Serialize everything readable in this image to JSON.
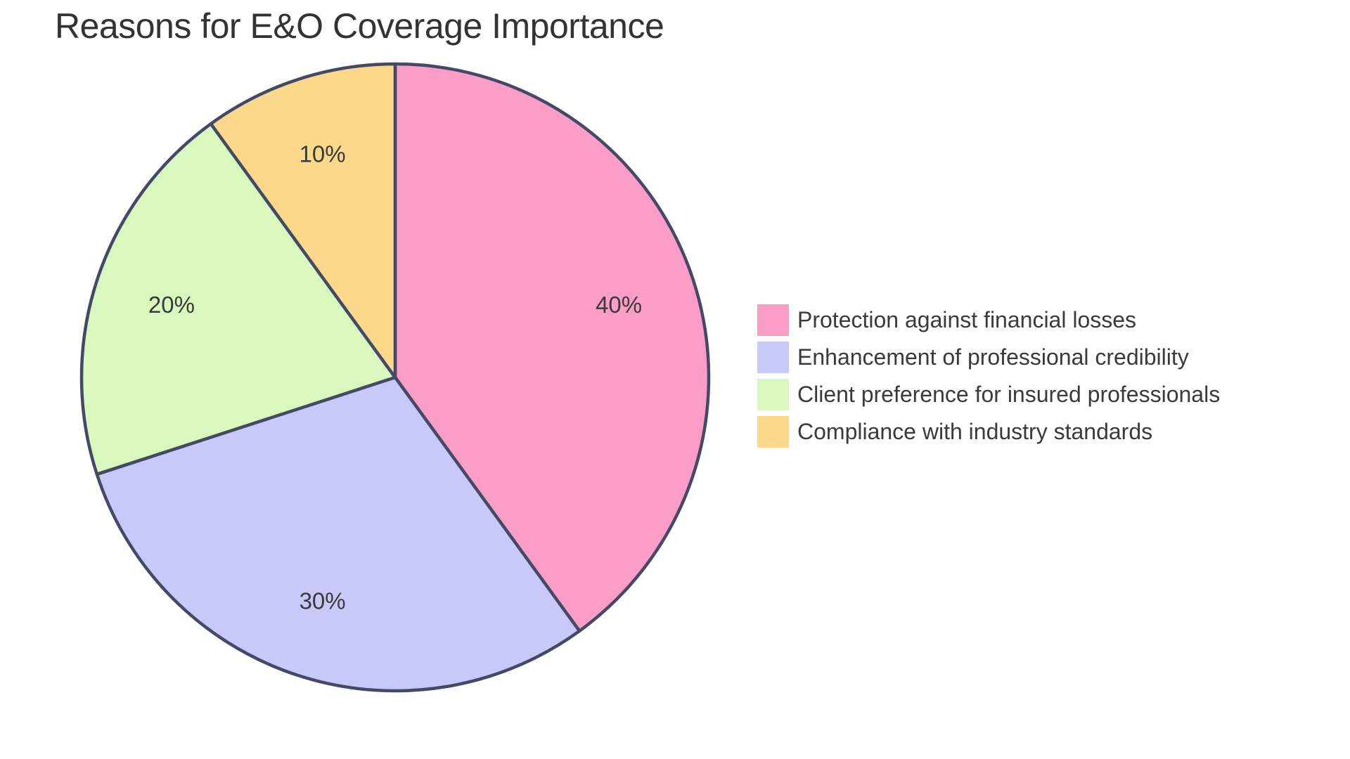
{
  "chart_data": {
    "type": "pie",
    "title": "Reasons for E&O Coverage Importance",
    "direction": "clockwise",
    "start_angle_deg": 0,
    "slices": [
      {
        "label": "Protection against financial losses",
        "value": 40,
        "display": "40%",
        "color": "#FA9EC8"
      },
      {
        "label": "Enhancement of professional credibility",
        "value": 30,
        "display": "30%",
        "color": "#C8C9F8"
      },
      {
        "label": "Client preference for insured professionals",
        "value": 20,
        "display": "20%",
        "color": "#D8F8BD"
      },
      {
        "label": "Compliance with industry standards",
        "value": 10,
        "display": "10%",
        "color": "#FCD98A"
      }
    ],
    "stroke_color": "#444A66",
    "stroke_width": 4.5,
    "slice_label_color": "#3A3A3A",
    "title_color": "#333333",
    "legend_text_color": "#3A3A3A",
    "background_color": "#FFFFFF",
    "legend_position": "right"
  }
}
